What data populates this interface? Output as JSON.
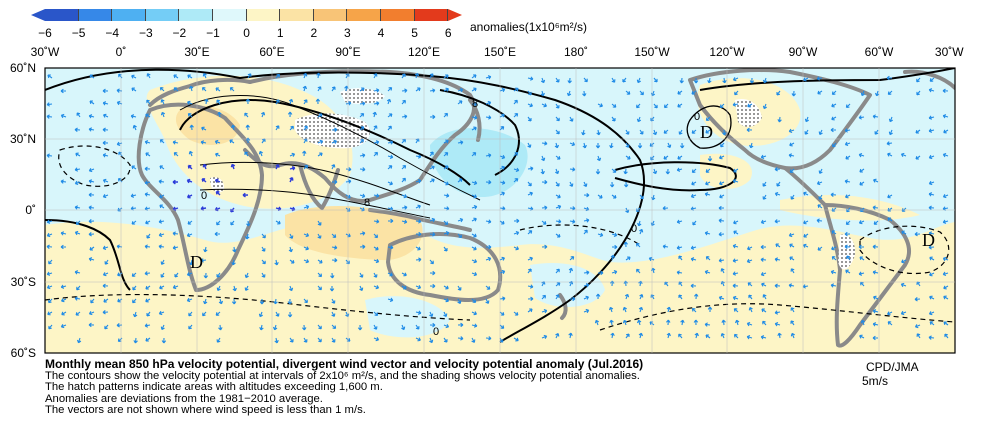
{
  "legend": {
    "ticks": [
      "−6",
      "−5",
      "−4",
      "−3",
      "−2",
      "−1",
      "0",
      "1",
      "2",
      "3",
      "4",
      "5",
      "6"
    ],
    "colors": [
      "#2a56c9",
      "#3688e8",
      "#4eb0f2",
      "#74cdf6",
      "#aeeaf7",
      "#dff8fb",
      "#fdf5c6",
      "#fbe3a5",
      "#f8c477",
      "#f6a449",
      "#f27e2e",
      "#e33a1c"
    ],
    "title": "anomalies(1x10⁶m²/s)"
  },
  "axes": {
    "lon_labels": [
      "30˚W",
      "0˚",
      "30˚E",
      "60˚E",
      "90˚E",
      "120˚E",
      "150˚E",
      "180˚",
      "150˚W",
      "120˚W",
      "90˚W",
      "60˚W",
      "30˚W"
    ],
    "lat_labels": [
      "60˚N",
      "30˚N",
      "0˚",
      "30˚S",
      "60˚S"
    ]
  },
  "map": {
    "contour_labels": [
      "8",
      "8",
      "0",
      "0",
      "0",
      "0"
    ],
    "centers": [
      "D",
      "D",
      "D"
    ],
    "ocean_color": "#d8f6fb",
    "land_color": "#8a8a8a"
  },
  "caption": {
    "title": "Monthly mean 850 hPa velocity potential, divergent wind vector and velocity potential anomaly (Jul.2016)",
    "line1": "The contours show the velocity potential at intervals of 2x10⁶ m²/s, and the shading shows velocity potential anomalies.",
    "line2": "The hatch patterns indicate areas with altitudes exceeding 1,600 m.",
    "line3": "Anomalies are deviations from the 1981−2010 average.",
    "line4": "The vectors are not shown where wind speed is less than 1 m/s."
  },
  "credit": "CPD/JMA",
  "reference_vector": "5m/s"
}
